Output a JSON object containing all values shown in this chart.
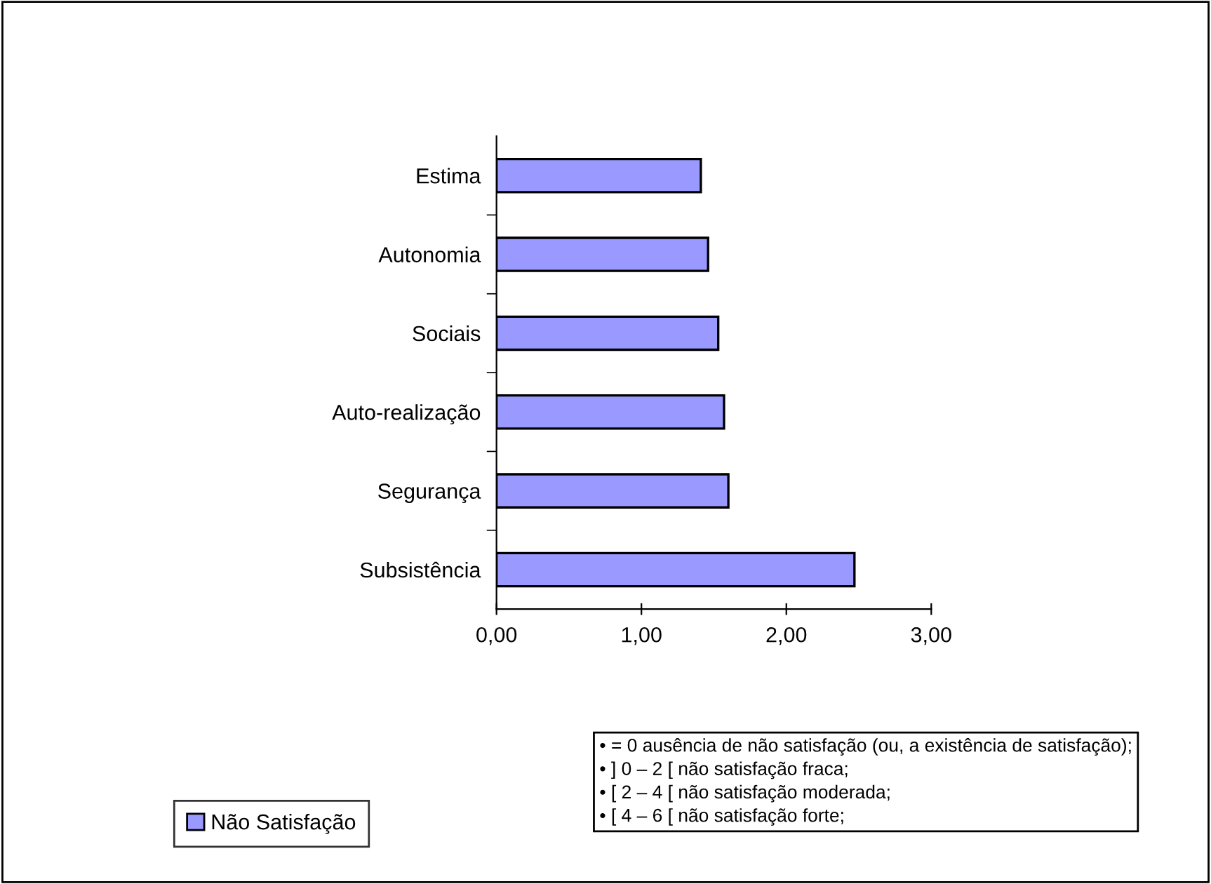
{
  "chart_data": {
    "type": "bar",
    "orientation": "horizontal",
    "categories": [
      "Estima",
      "Autonomia",
      "Sociais",
      "Auto-realização",
      "Segurança",
      "Subsistência"
    ],
    "series": [
      {
        "name": "Não Satisfação",
        "color": "#9999ff",
        "values": [
          1.41,
          1.46,
          1.53,
          1.57,
          1.6,
          2.47
        ]
      }
    ],
    "xlim": [
      0,
      3
    ],
    "xticks": [
      {
        "value": 0,
        "label": "0,00"
      },
      {
        "value": 1,
        "label": "1,00"
      },
      {
        "value": 2,
        "label": "2,00"
      },
      {
        "value": 3,
        "label": "3,00"
      }
    ],
    "grid": false,
    "legend": "bottom left",
    "annotations": [
      "• = 0 ausência de não satisfação (ou, a existência de satisfação);",
      "• ] 0 – 2 [ não satisfação fraca;",
      "• [ 2 – 4 [ não satisfação moderada;",
      "• [ 4 – 6 [ não satisfação forte;"
    ]
  }
}
